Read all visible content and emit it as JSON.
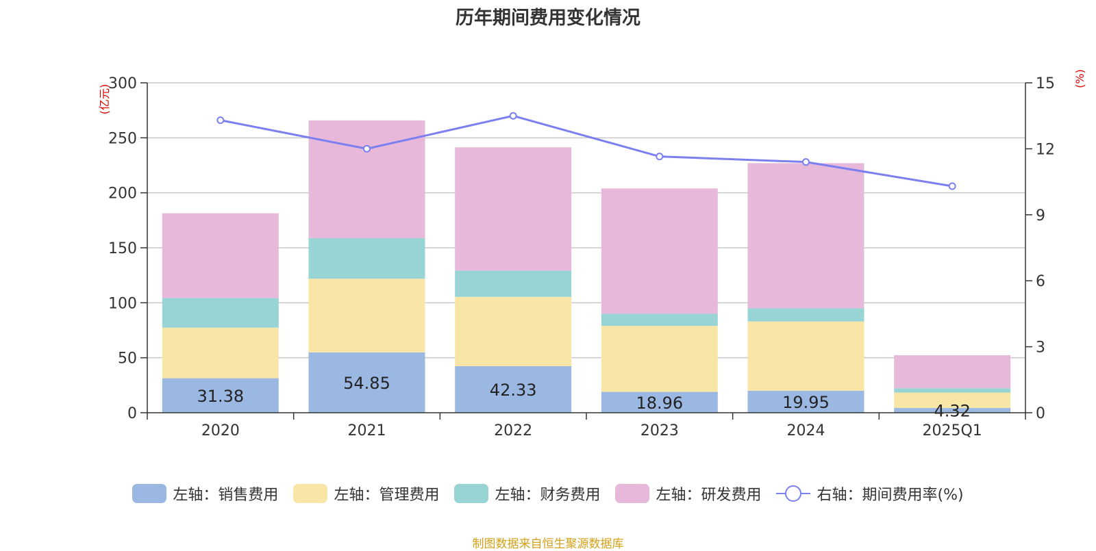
{
  "chart_data": {
    "type": "bar",
    "stacked": true,
    "title": "历年期间费用变化情况",
    "categories": [
      "2020",
      "2021",
      "2022",
      "2023",
      "2024",
      "2025Q1"
    ],
    "series": [
      {
        "name": "左轴：销售费用",
        "axis": "left",
        "color": "#9bb8e2",
        "values": [
          31.38,
          54.85,
          42.33,
          18.96,
          19.95,
          4.32
        ]
      },
      {
        "name": "左轴：管理费用",
        "axis": "left",
        "color": "#f8e6a7",
        "values": [
          46,
          67,
          63,
          60,
          63,
          14
        ]
      },
      {
        "name": "左轴：财务费用",
        "axis": "left",
        "color": "#99d4d4",
        "values": [
          27,
          37,
          24,
          11,
          12,
          4
        ]
      },
      {
        "name": "左轴：研发费用",
        "axis": "left",
        "color": "#e7b8d9",
        "values": [
          77,
          107,
          112,
          114,
          132,
          30
        ]
      }
    ],
    "line_series": {
      "name": "右轴：期间费用率(%)",
      "axis": "right",
      "type": "line",
      "color": "#7b7fef",
      "values": [
        13.3,
        12.0,
        13.5,
        11.65,
        11.4,
        10.3
      ]
    },
    "data_labels": [
      "31.38",
      "54.85",
      "42.33",
      "18.96",
      "19.95",
      "4.32"
    ],
    "y_left": {
      "label": "(亿元)",
      "ylim": [
        0,
        300
      ],
      "ticks": [
        0,
        50,
        100,
        150,
        200,
        250,
        300
      ]
    },
    "y_right": {
      "label": "(%)",
      "ylim": [
        0,
        15
      ],
      "ticks": [
        0,
        3,
        6,
        9,
        12,
        15
      ]
    },
    "grid": true,
    "legend_position": "bottom"
  },
  "source_text": "制图数据来自恒生聚源数据库"
}
